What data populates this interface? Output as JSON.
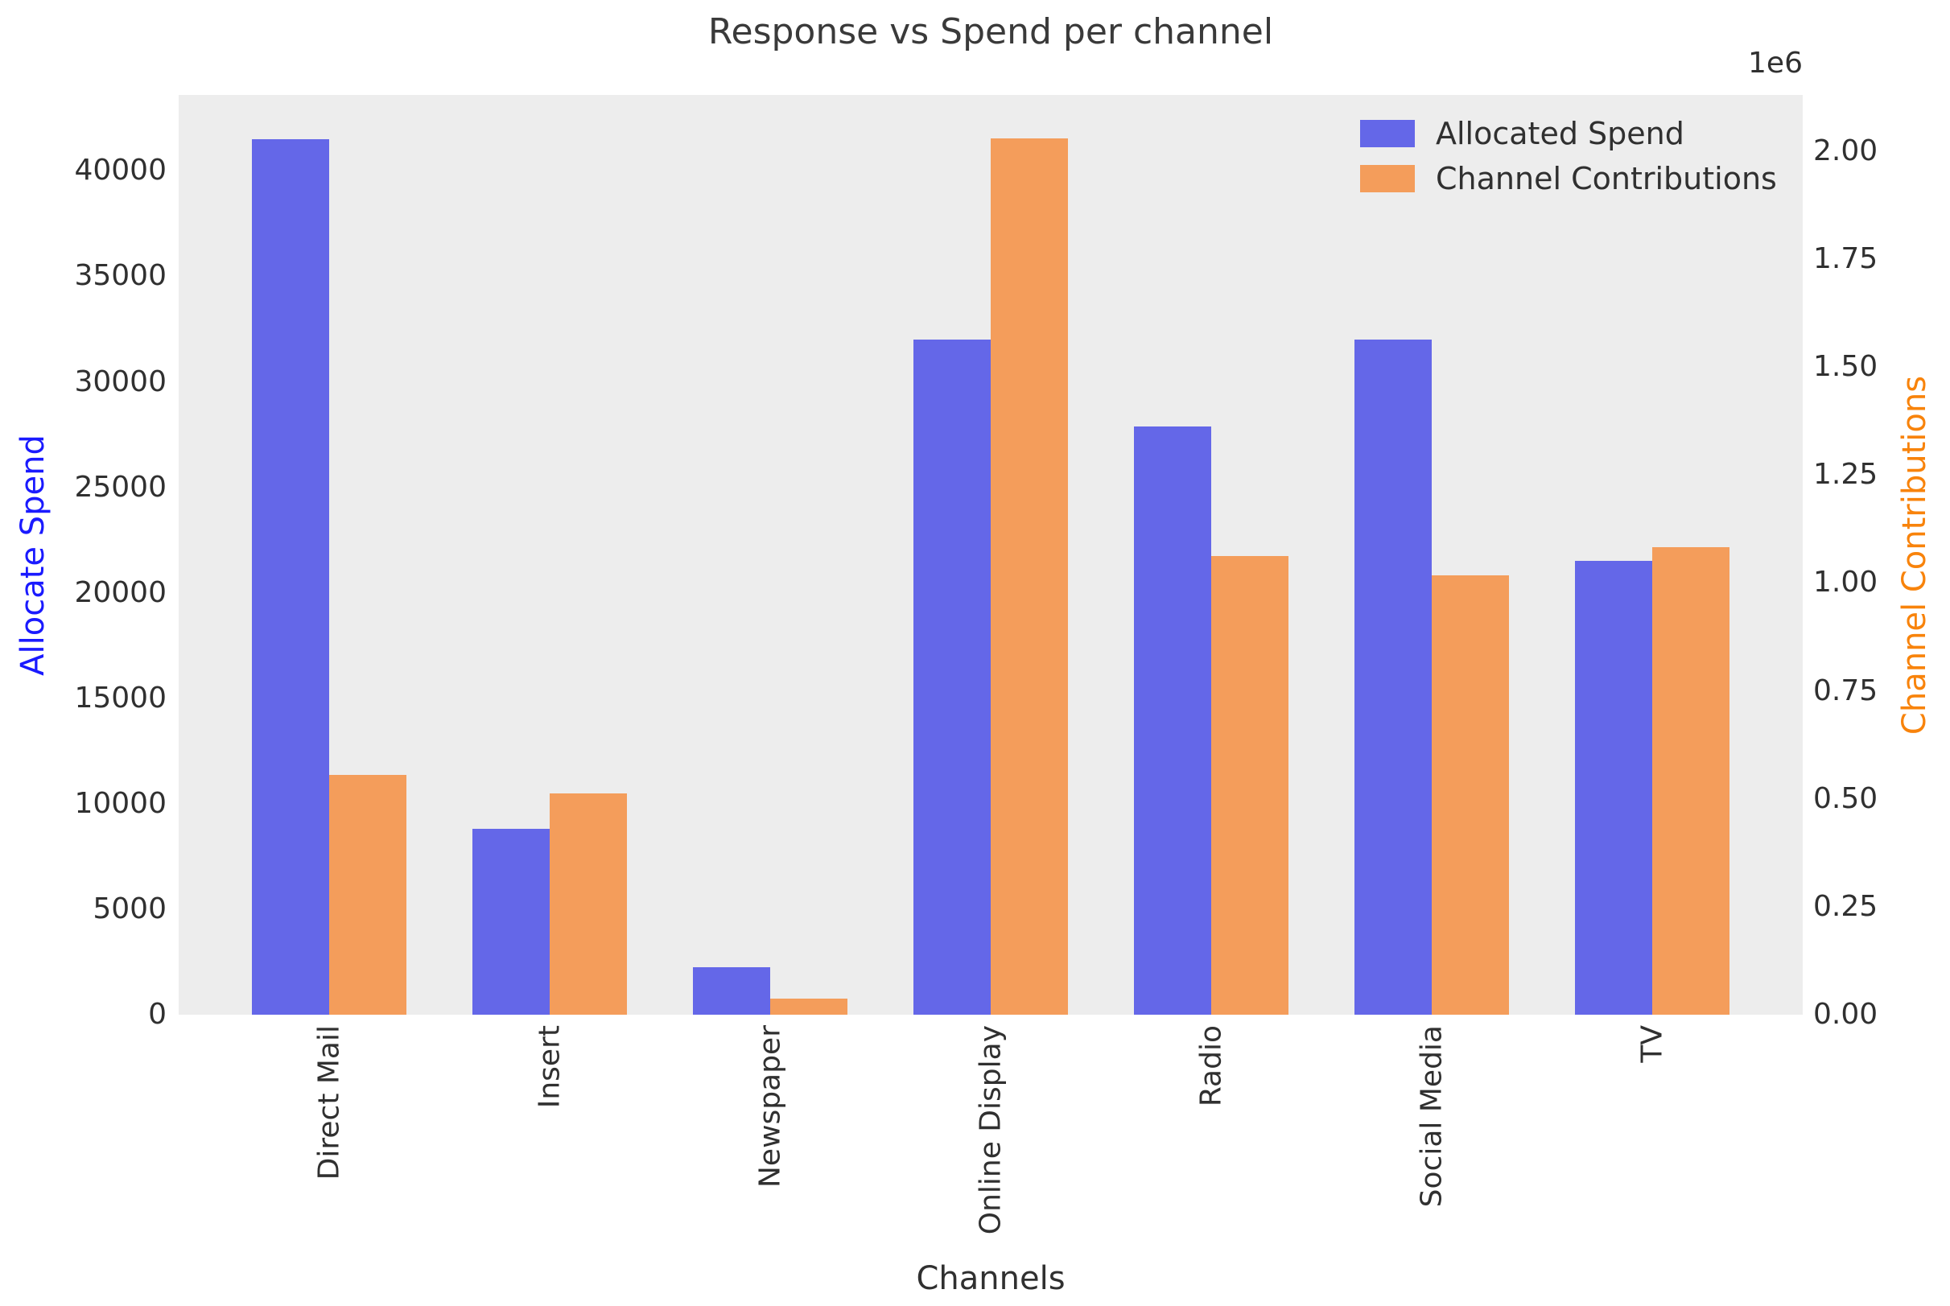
{
  "title": "Response vs Spend per channel",
  "colors": {
    "spend_bar": "#6467E8",
    "contribution_bar": "#F49D5B",
    "left_axis_label": "#1A1AFF",
    "right_axis_label": "#F8830B",
    "tick_text": "#303030",
    "plot_background": "#EDEDED",
    "figure_background": "#FFFFFF"
  },
  "legend": {
    "items": [
      {
        "label": "Allocated Spend",
        "color": "#6467E8"
      },
      {
        "label": "Channel Contributions",
        "color": "#F49D5B"
      }
    ]
  },
  "axes": {
    "x_label": "Channels",
    "y_left_label": "Allocate Spend",
    "y_right_label": "Channel Contributions",
    "y_right_offset": "1e6",
    "y_left_ticks": {
      "values": [
        0,
        5000,
        10000,
        15000,
        20000,
        25000,
        30000,
        35000,
        40000
      ],
      "labels": [
        "0",
        "5000",
        "10000",
        "15000",
        "20000",
        "25000",
        "30000",
        "35000",
        "40000"
      ]
    },
    "y_right_ticks": {
      "values": [
        0,
        250000,
        500000,
        750000,
        1000000,
        1250000,
        1500000,
        1750000,
        2000000
      ],
      "labels": [
        "0.00",
        "0.25",
        "0.50",
        "0.75",
        "1.00",
        "1.25",
        "1.50",
        "1.75",
        "2.00"
      ]
    }
  },
  "chart_data": {
    "type": "bar",
    "title": "Response vs Spend per channel",
    "xlabel": "Channels",
    "ylabel_left": "Allocate Spend",
    "ylabel_right": "Channel Contributions",
    "categories": [
      "Direct Mail",
      "Insert",
      "Newspaper",
      "Online Display",
      "Radio",
      "Social Media",
      "TV"
    ],
    "series": [
      {
        "name": "Allocated Spend",
        "axis": "left",
        "color": "#6467E8",
        "values": [
          41500,
          8800,
          2250,
          32000,
          27900,
          32000,
          21500
        ]
      },
      {
        "name": "Channel Contributions",
        "axis": "right",
        "color": "#F49D5B",
        "values": [
          555000,
          513000,
          37000,
          2030000,
          1063000,
          1018000,
          1082000
        ]
      }
    ],
    "ylim_left": [
      0,
      43600
    ],
    "ylim_right": [
      0,
      2130000
    ],
    "right_axis_scale_offset": "1e6",
    "grid": false,
    "legend_position": "upper right"
  }
}
